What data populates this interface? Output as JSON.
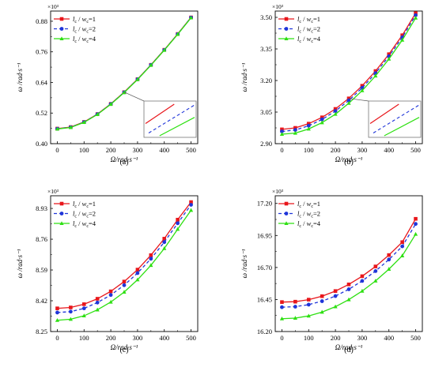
{
  "colors": {
    "s1": "#e8161b",
    "s2": "#1f35d9",
    "s3": "#2ee012",
    "axis": "#000000"
  },
  "chart_data": [
    {
      "panel_label": "(a)",
      "type": "line",
      "xlabel": "Ω/rad·s⁻¹",
      "ylabel": "ω /rad·s⁻¹",
      "multiplier": "×10³",
      "x": [
        0,
        50,
        100,
        150,
        200,
        250,
        300,
        350,
        400,
        450,
        500
      ],
      "xticks": [
        "0",
        "100",
        "200",
        "300",
        "400",
        "500"
      ],
      "yticks": [
        "0.40",
        "0.52",
        "0.64",
        "0.76",
        "0.88"
      ],
      "ylim": [
        0.4,
        0.92
      ],
      "legend": "top-left",
      "inset": true,
      "series": [
        {
          "name": "lc/wc=1",
          "values": [
            0.459,
            0.465,
            0.485,
            0.516,
            0.556,
            0.602,
            0.653,
            0.709,
            0.768,
            0.83,
            0.895
          ]
        },
        {
          "name": "lc/wc=2",
          "values": [
            0.4585,
            0.4645,
            0.4845,
            0.5155,
            0.5555,
            0.6015,
            0.6525,
            0.7085,
            0.7675,
            0.8295,
            0.8945
          ]
        },
        {
          "name": "lc/wc=4",
          "values": [
            0.4575,
            0.4635,
            0.4835,
            0.5145,
            0.5545,
            0.6005,
            0.6515,
            0.7075,
            0.7665,
            0.8285,
            0.8935
          ]
        }
      ]
    },
    {
      "panel_label": "(b)",
      "type": "line",
      "xlabel": "Ω/rad·s⁻¹",
      "ylabel": "ω /rad·s⁻¹",
      "multiplier": "×10³",
      "x": [
        0,
        50,
        100,
        150,
        200,
        250,
        300,
        350,
        400,
        450,
        500
      ],
      "xticks": [
        "0",
        "100",
        "200",
        "300",
        "400",
        "500"
      ],
      "yticks": [
        "2.90",
        "3.05",
        "3.20",
        "3.35",
        "3.50"
      ],
      "ylim": [
        2.9,
        3.53
      ],
      "legend": "top-left",
      "inset": true,
      "series": [
        {
          "name": "lc/wc=1",
          "values": [
            2.968,
            2.975,
            2.995,
            3.025,
            3.065,
            3.115,
            3.175,
            3.245,
            3.325,
            3.415,
            3.52
          ]
        },
        {
          "name": "lc/wc=2",
          "values": [
            2.958,
            2.965,
            2.985,
            3.015,
            3.055,
            3.105,
            3.165,
            3.235,
            3.315,
            3.405,
            3.51
          ]
        },
        {
          "name": "lc/wc=4",
          "values": [
            2.945,
            2.95,
            2.97,
            3.0,
            3.04,
            3.092,
            3.152,
            3.222,
            3.302,
            3.392,
            3.497
          ]
        }
      ]
    },
    {
      "panel_label": "(c)",
      "type": "line",
      "xlabel": "Ω/rad·s⁻¹",
      "ylabel": "ω /rad·s⁻¹",
      "multiplier": "×10³",
      "x": [
        0,
        50,
        100,
        150,
        200,
        250,
        300,
        350,
        400,
        450,
        500
      ],
      "xticks": [
        "0",
        "100",
        "200",
        "300",
        "400",
        "500"
      ],
      "yticks": [
        "8.25",
        "8.42",
        "8.59",
        "8.76",
        "8.93"
      ],
      "ylim": [
        8.25,
        9.0
      ],
      "legend": "top-left",
      "inset": false,
      "series": [
        {
          "name": "lc/wc=1",
          "values": [
            8.378,
            8.383,
            8.401,
            8.431,
            8.472,
            8.526,
            8.592,
            8.672,
            8.763,
            8.868,
            8.965
          ]
        },
        {
          "name": "lc/wc=2",
          "values": [
            8.355,
            8.36,
            8.378,
            8.41,
            8.452,
            8.506,
            8.573,
            8.652,
            8.744,
            8.848,
            8.95
          ]
        },
        {
          "name": "lc/wc=4",
          "values": [
            8.312,
            8.318,
            8.337,
            8.37,
            8.413,
            8.468,
            8.536,
            8.616,
            8.709,
            8.815,
            8.92
          ]
        }
      ]
    },
    {
      "panel_label": "(d)",
      "type": "line",
      "xlabel": "Ω/rad·s⁻¹",
      "ylabel": "ω /rad·s⁻¹",
      "multiplier": "×10³",
      "x": [
        0,
        50,
        100,
        150,
        200,
        250,
        300,
        350,
        400,
        450,
        500
      ],
      "xticks": [
        "0",
        "100",
        "200",
        "300",
        "400",
        "500"
      ],
      "yticks": [
        "16.20",
        "16.45",
        "16.70",
        "16.95",
        "17.20"
      ],
      "ylim": [
        16.2,
        17.26
      ],
      "legend": "top-left",
      "inset": false,
      "series": [
        {
          "name": "lc/wc=1",
          "values": [
            16.43,
            16.433,
            16.449,
            16.476,
            16.516,
            16.568,
            16.632,
            16.708,
            16.797,
            16.898,
            17.08
          ]
        },
        {
          "name": "lc/wc=2",
          "values": [
            16.39,
            16.394,
            16.41,
            16.437,
            16.477,
            16.53,
            16.595,
            16.672,
            16.762,
            16.865,
            17.04
          ]
        },
        {
          "name": "lc/wc=4",
          "values": [
            16.3,
            16.305,
            16.322,
            16.352,
            16.394,
            16.449,
            16.516,
            16.595,
            16.687,
            16.792,
            16.96
          ]
        }
      ]
    }
  ]
}
